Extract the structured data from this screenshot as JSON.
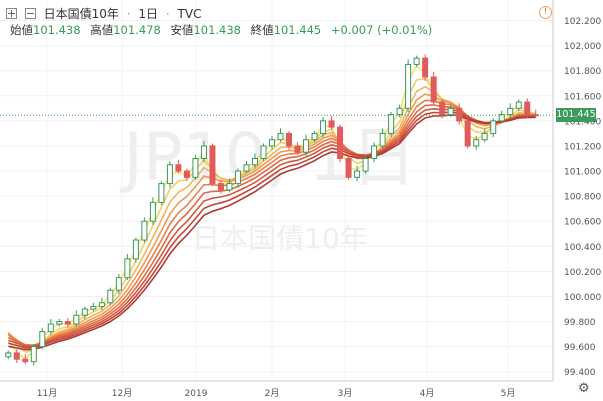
{
  "header": {
    "symbol": "日本国債10年",
    "interval": "1日",
    "source": "TVC"
  },
  "ohlc": {
    "open_label": "始値",
    "open": "101.438",
    "high_label": "高値",
    "high": "101.478",
    "low_label": "安値",
    "low": "101.438",
    "close_label": "終値",
    "close": "101.445",
    "change": "+0.007 (+0.01%)"
  },
  "price_label": "101.445",
  "watermark": {
    "main": "JP10, 1日",
    "sub": "日本国債10年"
  },
  "colors": {
    "up": "#3a9b5a",
    "down": "#e05b5b",
    "ribbon": [
      "#f7e36a",
      "#f6cf63",
      "#f5b45a",
      "#f09a52",
      "#e9814a",
      "#e06a44",
      "#d4573f",
      "#c3473a",
      "#ad3b35"
    ]
  },
  "chart_data": {
    "type": "line",
    "title": "日本国債10年",
    "xlabel": "",
    "ylabel": "",
    "ylim": [
      99.35,
      102.3
    ],
    "y_ticks": [
      "102.200",
      "102.000",
      "101.800",
      "101.600",
      "101.400",
      "101.200",
      "101.000",
      "100.800",
      "100.600",
      "100.400",
      "100.200",
      "100.000",
      "99.800",
      "99.600",
      "99.400"
    ],
    "x_ticks": [
      "11月",
      "12月",
      "2019",
      "2月",
      "3月",
      "4月",
      "5月"
    ],
    "series": [
      {
        "values": [
          99.55,
          99.5,
          99.48,
          99.6,
          99.72,
          99.78,
          99.8,
          99.78,
          99.85,
          99.9,
          99.92,
          99.95,
          100.05,
          100.15,
          100.3,
          100.45,
          100.6,
          100.75,
          100.9,
          101.05,
          101.0,
          100.95,
          101.1,
          101.2,
          100.9,
          100.85,
          100.9,
          101.0,
          101.05,
          101.1,
          101.2,
          101.25,
          101.3,
          101.2,
          101.15,
          101.25,
          101.3,
          101.4,
          101.35,
          101.1,
          100.95,
          101.0,
          101.1,
          101.2,
          101.3,
          101.45,
          101.5,
          101.85,
          101.9,
          101.75,
          101.55,
          101.45,
          101.5,
          101.4,
          101.2,
          101.25,
          101.3,
          101.4,
          101.45,
          101.5,
          101.55,
          101.45,
          101.445
        ]
      }
    ],
    "ribbon_averages": 9
  }
}
